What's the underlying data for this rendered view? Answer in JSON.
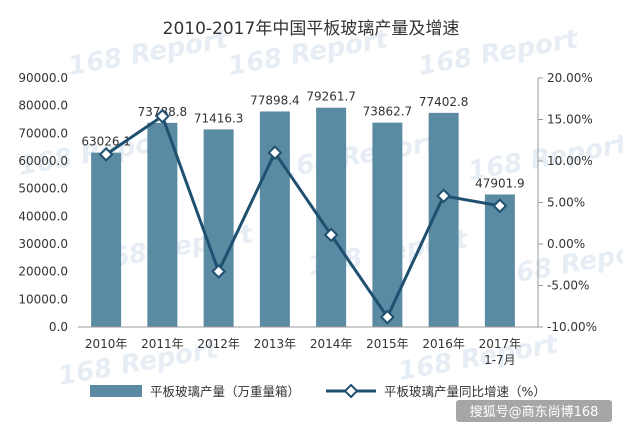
{
  "chart_data": {
    "type": "bar",
    "title": "2010-2017年中国平板玻璃产量及增速",
    "categories": [
      "2010年",
      "2011年",
      "2012年",
      "2013年",
      "2014年",
      "2015年",
      "2016年",
      "2017年\n1-7月"
    ],
    "series": [
      {
        "name": "平板玻璃产量（万重量箱）",
        "type": "bar",
        "axis": "left",
        "color": "#5b8aa3",
        "values": [
          63026.1,
          73788.8,
          71416.3,
          77898.4,
          79261.7,
          73862.7,
          77402.8,
          47901.9
        ],
        "labels": [
          "63026.1",
          "73788.8",
          "71416.3",
          "77898.4",
          "79261.7",
          "73862.7",
          "77402.8",
          "47901.9"
        ]
      },
      {
        "name": "平板玻璃产量同比增速（%）",
        "type": "line",
        "axis": "right",
        "color": "#205070",
        "values": [
          10.8,
          15.4,
          -3.3,
          11.0,
          1.1,
          -8.8,
          5.8,
          4.6
        ]
      }
    ],
    "ylim_left": [
      0,
      90000
    ],
    "yticks_left": [
      "0.0",
      "10000.0",
      "20000.0",
      "30000.0",
      "40000.0",
      "50000.0",
      "60000.0",
      "70000.0",
      "80000.0",
      "90000.0"
    ],
    "ylim_right": [
      -10,
      20
    ],
    "yticks_right": [
      "-10.00%",
      "-5.00%",
      "0.00%",
      "5.00%",
      "10.00%",
      "15.00%",
      "20.00%"
    ],
    "legend_position": "bottom",
    "grid": false
  },
  "watermark": "168 Report",
  "credit": "搜狐号@商东尚博168"
}
